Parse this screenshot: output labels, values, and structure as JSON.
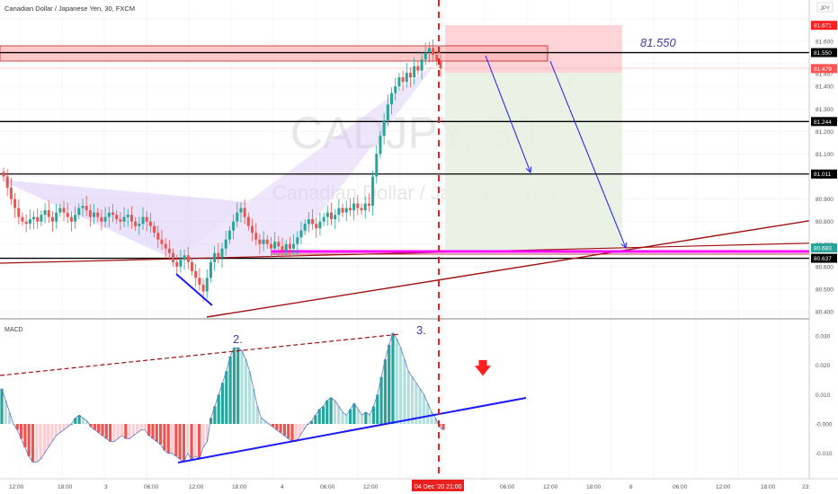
{
  "header": {
    "title": "Canadian Dollar / Japanese Yen, 30, FXCM"
  },
  "watermark": {
    "symbol": "CADJPY, 30",
    "name": "Canadian Dollar / Japanese Yen"
  },
  "currency_badge": "JPY",
  "annotation_level": "81.550",
  "macd_label": "MACD",
  "wave_labels": [
    "2.",
    "3."
  ],
  "time_highlight": {
    "date": "04 Dec '20",
    "time": "21:00"
  },
  "colors": {
    "bull": "#26a69a",
    "bear": "#ef5350",
    "grid": "#f0f0f0",
    "resistance_zone": "#ffcdd2",
    "target_zone": "#e8f0e2",
    "pattern_fill": "#d9c8f5",
    "arrow": "#1a1aff",
    "trendline": "#a01010",
    "support": "#ff00ff",
    "red_badge": "#ff1f1f"
  },
  "chart_data": [
    {
      "type": "line",
      "title": "Canadian Dollar / Japanese Yen, 30, FXCM",
      "ylim": [
        80.4,
        81.7
      ],
      "price_axis_ticks": [
        "81.600",
        "81.457",
        "81.400",
        "81.300",
        "81.200",
        "81.100",
        "81.000",
        "80.900",
        "80.800",
        "80.700",
        "80.600",
        "80.500",
        "80.400"
      ],
      "price_axis_badges": [
        {
          "label": "81.671",
          "color": "#ff1f1f"
        },
        {
          "label": "81.550",
          "color": "#000000"
        },
        {
          "label": "81.479",
          "color": "#ff5252"
        },
        {
          "label": "81.244",
          "color": "#000000"
        },
        {
          "label": "81.011",
          "color": "#000000"
        },
        {
          "label": "80.683",
          "color": "#26a69a"
        },
        {
          "label": "80.637",
          "color": "#000000"
        }
      ],
      "horizontal_levels": [
        81.55,
        81.244,
        81.011,
        80.637
      ],
      "support_level": 80.67,
      "resistance_zone": [
        81.49,
        81.57
      ],
      "x_ticks": [
        "12:00",
        "18:00",
        "3",
        "06:00",
        "12:00",
        "18:00",
        "4",
        "06:00",
        "12:00",
        "04 Dec '20  21:00",
        "06:00",
        "12:00",
        "18:00",
        "8",
        "06:00",
        "12:00",
        "18:00",
        "23:"
      ],
      "close_series": [
        81.0,
        80.95,
        80.9,
        80.86,
        80.82,
        80.8,
        80.79,
        80.81,
        80.82,
        80.8,
        80.83,
        80.85,
        80.82,
        80.8,
        80.84,
        80.86,
        80.84,
        80.82,
        80.8,
        80.83,
        80.86,
        80.87,
        80.85,
        80.82,
        80.84,
        80.82,
        80.8,
        80.82,
        80.84,
        80.83,
        80.81,
        80.8,
        80.82,
        80.83,
        80.8,
        80.78,
        80.79,
        80.82,
        80.8,
        80.78,
        80.75,
        80.72,
        80.7,
        80.68,
        80.66,
        80.62,
        80.6,
        80.63,
        80.65,
        80.62,
        80.58,
        80.55,
        80.52,
        80.49,
        80.55,
        80.62,
        80.66,
        80.64,
        80.68,
        80.72,
        80.76,
        80.8,
        80.84,
        80.86,
        80.82,
        80.78,
        80.75,
        80.72,
        80.7,
        80.72,
        80.7,
        80.68,
        80.71,
        80.69,
        80.67,
        80.7,
        80.68,
        80.7,
        80.73,
        80.76,
        80.79,
        80.81,
        80.79,
        80.77,
        80.8,
        80.82,
        80.84,
        80.81,
        80.83,
        80.86,
        80.84,
        80.86,
        80.85,
        80.88,
        80.86,
        80.85,
        80.88,
        80.87,
        81.0,
        81.1,
        81.18,
        81.25,
        81.32,
        81.37,
        81.4,
        81.44,
        81.42,
        81.46,
        81.44,
        81.49,
        81.47,
        81.52,
        81.55,
        81.57,
        81.54,
        81.51,
        81.48
      ]
    },
    {
      "type": "bar",
      "title": "MACD",
      "ylim": [
        -0.016,
        0.033
      ],
      "axis_ticks": [
        "0.030",
        "0.020",
        "0.010",
        "-0.000",
        "-0.010"
      ],
      "values": [
        0.012,
        0.008,
        0.004,
        0.0,
        -0.002,
        -0.005,
        -0.008,
        -0.011,
        -0.013,
        -0.013,
        -0.012,
        -0.01,
        -0.008,
        -0.006,
        -0.004,
        -0.003,
        -0.002,
        -0.001,
        0.0,
        0.002,
        0.003,
        0.002,
        0.001,
        -0.001,
        -0.002,
        -0.003,
        -0.004,
        -0.005,
        -0.006,
        -0.006,
        -0.005,
        -0.004,
        -0.005,
        -0.005,
        -0.004,
        -0.003,
        -0.002,
        -0.002,
        -0.004,
        -0.005,
        -0.006,
        -0.007,
        -0.009,
        -0.01,
        -0.01,
        -0.011,
        -0.012,
        -0.013,
        -0.01,
        -0.012,
        -0.011,
        -0.012,
        -0.008,
        -0.006,
        0.002,
        0.006,
        0.01,
        0.014,
        0.018,
        0.023,
        0.026,
        0.026,
        0.025,
        0.022,
        0.018,
        0.012,
        0.006,
        0.002,
        0.001,
        0.0,
        -0.001,
        -0.002,
        -0.003,
        -0.004,
        -0.005,
        -0.006,
        -0.006,
        -0.004,
        -0.002,
        0.0,
        0.001,
        0.003,
        0.005,
        0.006,
        0.008,
        0.009,
        0.008,
        0.006,
        0.004,
        0.003,
        0.005,
        0.007,
        0.005,
        0.003,
        0.004,
        0.003,
        0.006,
        0.01,
        0.016,
        0.022,
        0.027,
        0.031,
        0.029,
        0.026,
        0.022,
        0.018,
        0.016,
        0.014,
        0.012,
        0.01,
        0.007,
        0.004,
        0.002,
        -0.001,
        -0.002
      ]
    }
  ]
}
